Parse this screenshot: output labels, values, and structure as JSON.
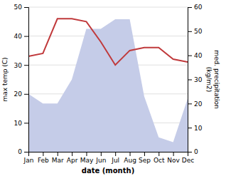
{
  "chart_data": {
    "type": "line",
    "categories": [
      "Jan",
      "Feb",
      "Mar",
      "Apr",
      "May",
      "Jun",
      "Jul",
      "Aug",
      "Sep",
      "Oct",
      "Nov",
      "Dec"
    ],
    "series": [
      {
        "type": "area",
        "axis": "y2",
        "color": "#c5cce8",
        "values": [
          24,
          20,
          20,
          30,
          51,
          51,
          55,
          55,
          23,
          6,
          4,
          22
        ]
      },
      {
        "type": "line",
        "color": "#c0393b",
        "values": [
          33,
          34,
          46,
          46,
          45,
          38,
          30,
          35,
          36,
          36,
          32,
          31
        ]
      }
    ],
    "xlabel": "date (month)",
    "ylabel": "max temp (C)",
    "y2label": "med. precipitation\n(kg/m2)",
    "ylim": [
      0,
      50
    ],
    "yticks": [
      0,
      10,
      20,
      30,
      40,
      50
    ],
    "y2lim": [
      0,
      60
    ],
    "y2ticks": [
      0,
      10,
      20,
      30,
      40,
      50,
      60
    ],
    "grid": true
  }
}
